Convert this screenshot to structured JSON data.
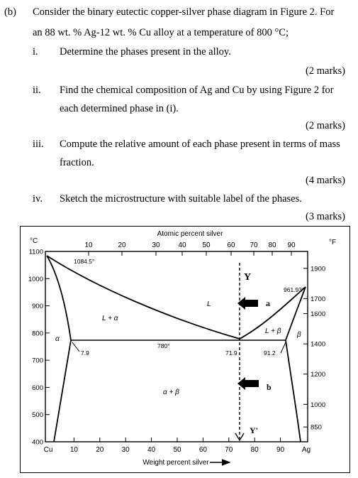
{
  "question": {
    "label": "(b)",
    "line1": "Consider the binary eutectic copper-silver phase diagram in Figure 2. For",
    "line2": "an 88 wt. % Ag-12 wt. % Cu alloy at a temperature of 800 °C;",
    "parts": [
      {
        "num": "i.",
        "lines": [
          "Determine the phases present in the alloy."
        ],
        "marks": "(2 marks)"
      },
      {
        "num": "ii.",
        "lines": [
          "Find the chemical composition of Ag and Cu by using Figure 2 for",
          "each determined phase in (i)."
        ],
        "marks": "(2 marks)"
      },
      {
        "num": "iii.",
        "lines": [
          "Compute the relative amount of each phase present in terms of mass",
          "fraction."
        ],
        "marks": "(4 marks)"
      },
      {
        "num": "iv.",
        "lines": [
          "Sketch the microstructure with suitable label of the phases."
        ],
        "marks": "(3 marks)"
      }
    ]
  },
  "chart_data": {
    "type": "diagram",
    "top_axis_title": "Atomic percent silver",
    "top_ticks": [
      "10",
      "20",
      "30",
      "40",
      "50",
      "60",
      "70",
      "80",
      "90"
    ],
    "x_axis_title": "Weight percent silver",
    "x_ticks": [
      "10",
      "20",
      "30",
      "40",
      "50",
      "60",
      "70",
      "80",
      "90"
    ],
    "x_left_label": "Cu",
    "x_right_label": "Ag",
    "y_left_unit": "°C",
    "y_left_ticks": [
      "1100",
      "1000",
      "900",
      "800",
      "700",
      "600",
      "500",
      "400"
    ],
    "y_right_unit": "°F",
    "y_right_ticks": [
      "1900",
      "1700",
      "1600",
      "1400",
      "1200",
      "1000",
      "850"
    ],
    "annotations": {
      "cu_melt": "1084.5°",
      "ag_melt": "961.93°",
      "eutectic_temp": "780°",
      "eutectic_comp": "71.9",
      "alpha_limit": "7.9",
      "beta_limit": "91.2"
    },
    "regions": {
      "liquid": "L",
      "l_alpha": "L + α",
      "l_beta": "L + β",
      "alpha": "α",
      "beta": "β",
      "alpha_beta": "α + β"
    },
    "markers": {
      "a": "a",
      "b": "b",
      "y_top": "Y",
      "y_bottom": "Y'"
    },
    "key_points": [
      {
        "wt_ag": 0,
        "temp_c": 1084.5
      },
      {
        "wt_ag": 100,
        "temp_c": 961.93
      },
      {
        "wt_ag": 71.9,
        "temp_c": 780
      },
      {
        "wt_ag": 7.9,
        "temp_c": 780
      },
      {
        "wt_ag": 91.2,
        "temp_c": 780
      }
    ],
    "vertical_line_wt_ag": 71.9,
    "y_range": [
      400,
      1100
    ],
    "x_range": [
      0,
      100
    ]
  }
}
